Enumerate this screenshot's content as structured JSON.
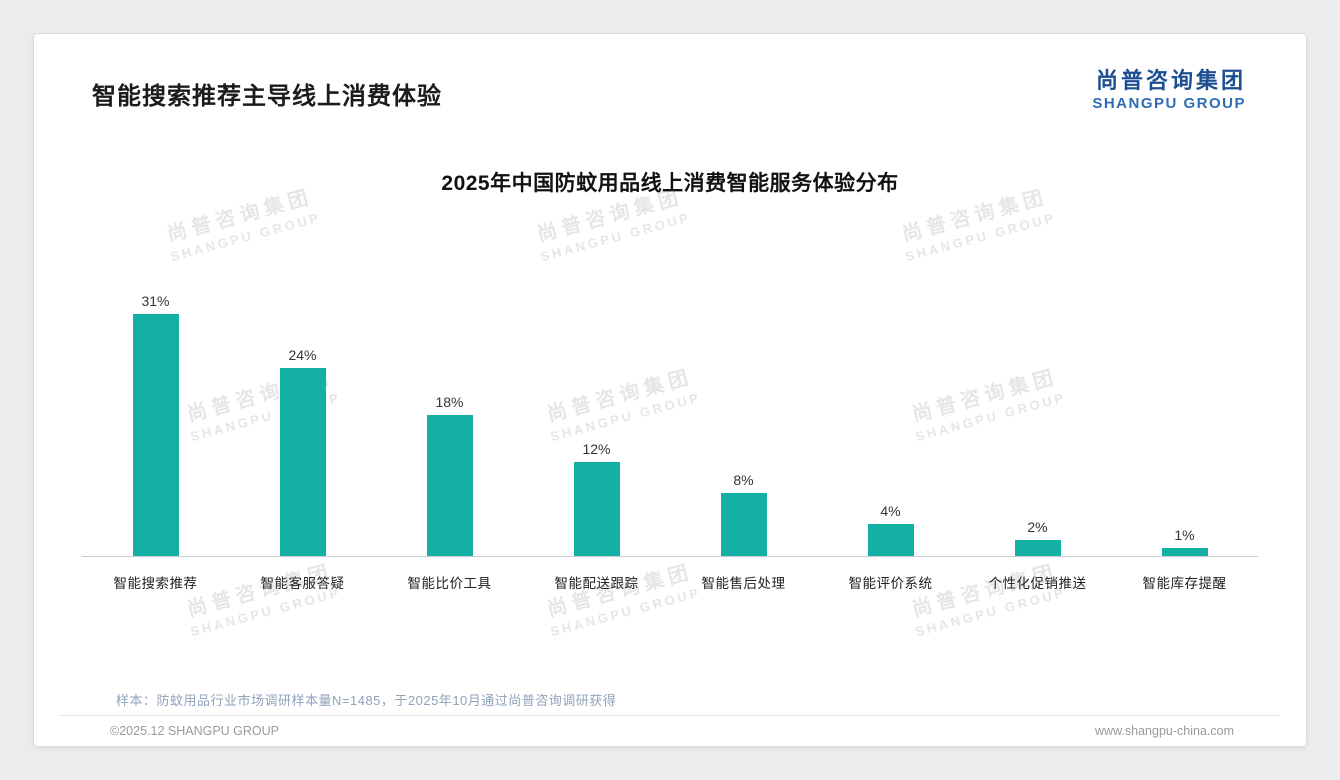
{
  "page": {
    "title": "智能搜索推荐主导线上消费体验",
    "logo": {
      "cn": "尚普咨询集团",
      "en": "SHANGPU GROUP"
    },
    "watermark": {
      "cn": "尚普咨询集团",
      "en": "SHANGPU GROUP"
    },
    "footer": {
      "sample_note": "样本：防蚊用品行业市场调研样本量N=1485，于2025年10月通过尚普咨询调研获得",
      "copyright": "©2025.12 SHANGPU GROUP",
      "website": "www.shangpu-china.com"
    }
  },
  "chart_data": {
    "type": "bar",
    "title": "2025年中国防蚊用品线上消费智能服务体验分布",
    "categories": [
      "智能搜索推荐",
      "智能客服答疑",
      "智能比价工具",
      "智能配送跟踪",
      "智能售后处理",
      "智能评价系统",
      "个性化促销推送",
      "智能库存提醒"
    ],
    "values": [
      31,
      24,
      18,
      12,
      8,
      4,
      2,
      1
    ],
    "value_labels": [
      "31%",
      "24%",
      "18%",
      "12%",
      "8%",
      "4%",
      "2%",
      "1%"
    ],
    "bar_color": "#14b0a6",
    "ylabel": "",
    "xlabel": "",
    "ylim": [
      0,
      34
    ],
    "grid": false,
    "legend": false,
    "baseline_color": "#c9c9c9"
  }
}
